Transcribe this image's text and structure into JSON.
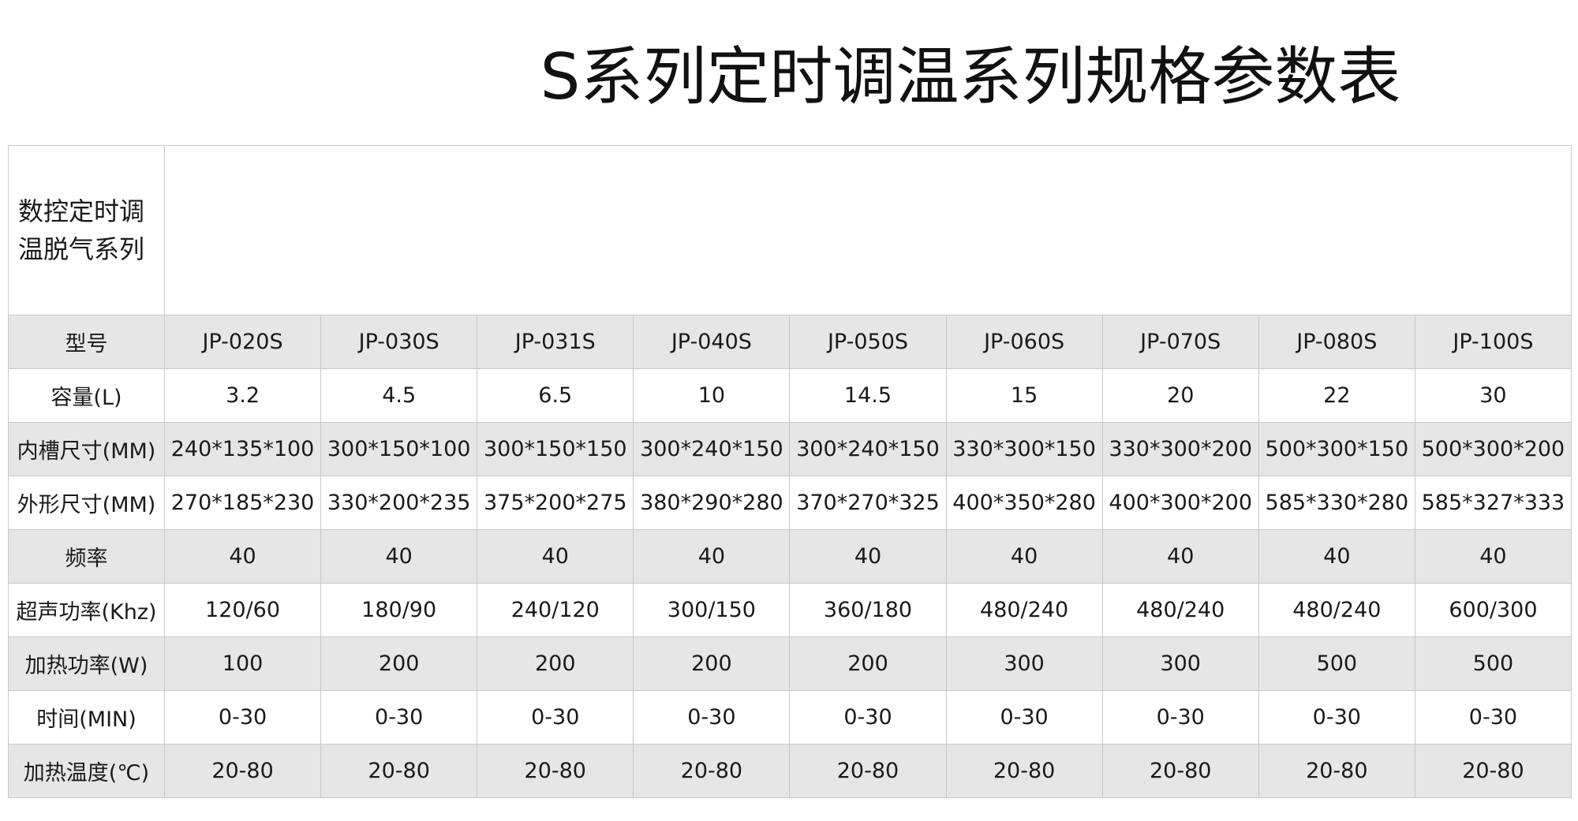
{
  "title": "S系列定时调温系列规格参数表",
  "table": {
    "header": "数控定时调温脱气系列",
    "rows": [
      [
        "型号",
        "JP-020S",
        "JP-030S",
        "JP-031S",
        "JP-040S",
        "JP-050S",
        "JP-060S",
        "JP-070S",
        "JP-080S",
        "JP-100S"
      ],
      [
        "容量(L)",
        "3.2",
        "4.5",
        "6.5",
        "10",
        "14.5",
        "15",
        "20",
        "22",
        "30"
      ],
      [
        "内槽尺寸(MM)",
        "240*135*100",
        "300*150*100",
        "300*150*150",
        "300*240*150",
        "300*240*150",
        "330*300*150",
        "330*300*200",
        "500*300*150",
        "500*300*200"
      ],
      [
        "外形尺寸(MM)",
        "270*185*230",
        "330*200*235",
        "375*200*275",
        "380*290*280",
        "370*270*325",
        "400*350*280",
        "400*300*200",
        "585*330*280",
        "585*327*333"
      ],
      [
        "频率",
        "40",
        "40",
        "40",
        "40",
        "40",
        "40",
        "40",
        "40",
        "40"
      ],
      [
        "超声功率(Khz)",
        "120/60",
        "180/90",
        "240/120",
        "300/150",
        "360/180",
        "480/240",
        "480/240",
        "480/240",
        "600/300"
      ],
      [
        "加热功率(W)",
        "100",
        "200",
        "200",
        "200",
        "200",
        "300",
        "300",
        "500",
        "500"
      ],
      [
        "时间(MIN)",
        "0-30",
        "0-30",
        "0-30",
        "0-30",
        "0-30",
        "0-30",
        "0-30",
        "0-30",
        "0-30"
      ],
      [
        "加热温度(℃)",
        "20-80",
        "20-80",
        "20-80",
        "20-80",
        "20-80",
        "20-80",
        "20-80",
        "20-80",
        "20-80"
      ]
    ]
  }
}
